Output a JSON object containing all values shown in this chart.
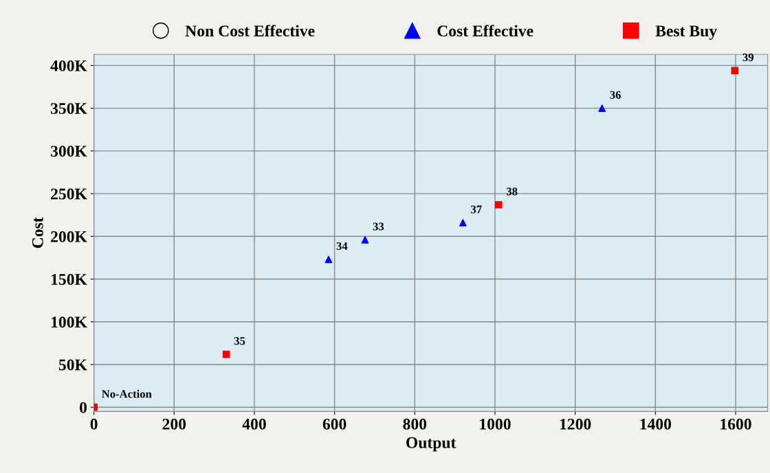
{
  "chart_data": {
    "type": "scatter",
    "xlabel": "Output",
    "ylabel": "Cost",
    "xlim": [
      0,
      1680
    ],
    "ylim": [
      -5000,
      413000
    ],
    "xticks": [
      0,
      200,
      400,
      600,
      800,
      1000,
      1200,
      1400,
      1600
    ],
    "yticks": [
      {
        "value": 0,
        "label": "0"
      },
      {
        "value": 50000,
        "label": "50K"
      },
      {
        "value": 100000,
        "label": "100K"
      },
      {
        "value": 150000,
        "label": "150K"
      },
      {
        "value": 200000,
        "label": "200K"
      },
      {
        "value": 250000,
        "label": "250K"
      },
      {
        "value": 300000,
        "label": "300K"
      },
      {
        "value": 350000,
        "label": "350K"
      },
      {
        "value": 400000,
        "label": "400K"
      }
    ],
    "grid": true,
    "legend": "top",
    "series": [
      {
        "name": "Non Cost Effective",
        "color": "#000000",
        "marker": "circle"
      },
      {
        "name": "Cost Effective",
        "color": "#0000ff",
        "marker": "triangle",
        "x": [
          585,
          676,
          920,
          1267
        ],
        "values": [
          173000,
          196000,
          216000,
          350000
        ]
      },
      {
        "name": "Best Buy",
        "color": "#ff0000",
        "marker": "square",
        "x": [
          0,
          330,
          1009,
          1598
        ],
        "values": [
          0,
          62000,
          237000,
          394000
        ]
      }
    ],
    "annotations": [
      {
        "text": "No-Action",
        "x": 0,
        "y": 0
      },
      {
        "text": "35",
        "x": 330,
        "y": 62000
      },
      {
        "text": "34",
        "x": 585,
        "y": 173000
      },
      {
        "text": "33",
        "x": 676,
        "y": 196000
      },
      {
        "text": "37",
        "x": 920,
        "y": 216000
      },
      {
        "text": "38",
        "x": 1009,
        "y": 237000
      },
      {
        "text": "36",
        "x": 1267,
        "y": 350000
      },
      {
        "text": "39",
        "x": 1598,
        "y": 394000
      }
    ]
  }
}
